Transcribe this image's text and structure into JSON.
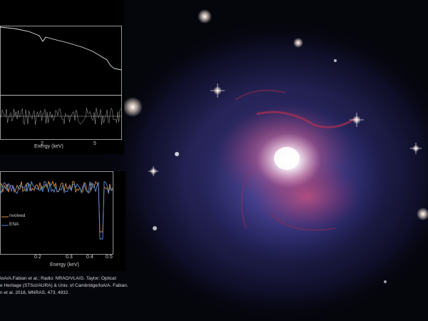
{
  "top_panel": {
    "xlabel": "Energy (keV)",
    "ticks": [
      "2",
      "5"
    ]
  },
  "bottom_panel": {
    "xlabel": "Energy (keV)",
    "ticks": [
      "0.2",
      "0.3",
      "0.4",
      "0.5"
    ],
    "legend": [
      "nvolved",
      "ENA"
    ]
  },
  "credit": {
    "line1": "IoA/A.Fabian et al.; Radio: NRAO/VLA/G. Taylor; Optical:",
    "line2": "e Heritage (STScI/AURA) & Univ. of Cambridge/IoA/A. Fabian.",
    "line3": "n et al. 2018, MNRAS, 473, 4932."
  }
}
